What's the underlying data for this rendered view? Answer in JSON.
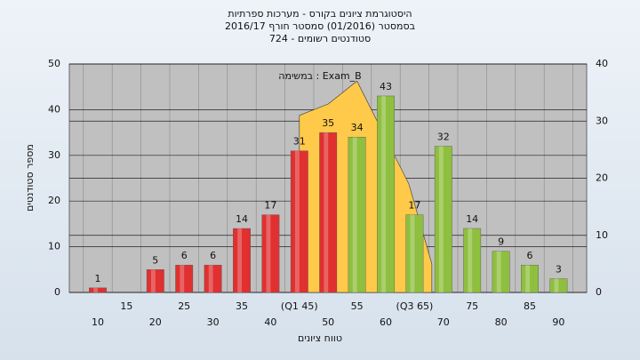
{
  "chart_data": {
    "type": "bar",
    "title": "היסטוגרמת ציונים בקורס - מערכות ספרתיות",
    "subtitle": "בסמסטר  (01/2016)  סמסטר חורף 2016/17",
    "subtitle2": "סטודנטים רשומים - 724",
    "annotation": "במשימה : Exam_B",
    "y_label": "מספר סטודנטים",
    "x_label": "טווח ציונים",
    "categories": [
      "10",
      "15",
      "20",
      "25",
      "30",
      "35",
      "40",
      "(Q1 45)",
      "50",
      "55",
      "60",
      "(Q3 65)",
      "70",
      "75",
      "80",
      "85",
      "90"
    ],
    "values": [
      1,
      null,
      5,
      6,
      6,
      14,
      17,
      31,
      35,
      34,
      43,
      17,
      32,
      14,
      9,
      6,
      3
    ],
    "colors": [
      "#e03030",
      "#e03030",
      "#e03030",
      "#e03030",
      "#e03030",
      "#e03030",
      "#e03030",
      "#e03030",
      "#e03030",
      "#8fbf3f",
      "#8fbf3f",
      "#8fbf3f",
      "#8fbf3f",
      "#8fbf3f",
      "#8fbf3f",
      "#8fbf3f",
      "#8fbf3f"
    ],
    "area": {
      "type": "area",
      "axis": "y2",
      "color": "#ffc94a",
      "x": [
        45,
        50,
        55,
        64,
        68
      ],
      "values": [
        31,
        33,
        37,
        19,
        5
      ]
    },
    "ylim": [
      0,
      50
    ],
    "yticks": [
      0,
      10,
      20,
      30,
      40,
      50
    ],
    "y2lim": [
      0,
      40
    ],
    "y2ticks": [
      0,
      10,
      20,
      30,
      40
    ],
    "grid": true
  }
}
